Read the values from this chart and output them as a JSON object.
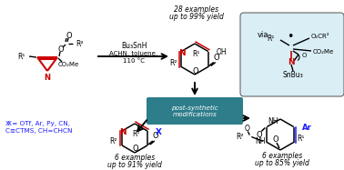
{
  "bg_color": "#ffffff",
  "red_color": "#cc0000",
  "blue_color": "#1a1aff",
  "teal_color": "#2e7d8a",
  "light_blue_box": "#d9eef5",
  "box_border": "#777777",
  "figsize": [
    3.78,
    1.87
  ],
  "dpi": 100,
  "conditions_line1": "Bu₃SnH",
  "conditions_line2": "ACHN, toluene,",
  "conditions_line3": "110 °C",
  "text_28ex_1": "28 examples",
  "text_28ex_2": "up to 99% yield",
  "text_6ex_left_1": "6 examples",
  "text_6ex_left_2": "up to 91% yield",
  "text_6ex_right_1": "6 examples",
  "text_6ex_right_2": "up to 85% yield",
  "post_synth": "post-synthetic\nmodifications",
  "via_text": "via",
  "x_label_line1": "X = OTf, Ar, Py, CN,",
  "x_label_line2": "C≡CTMS, CH=CHCN"
}
